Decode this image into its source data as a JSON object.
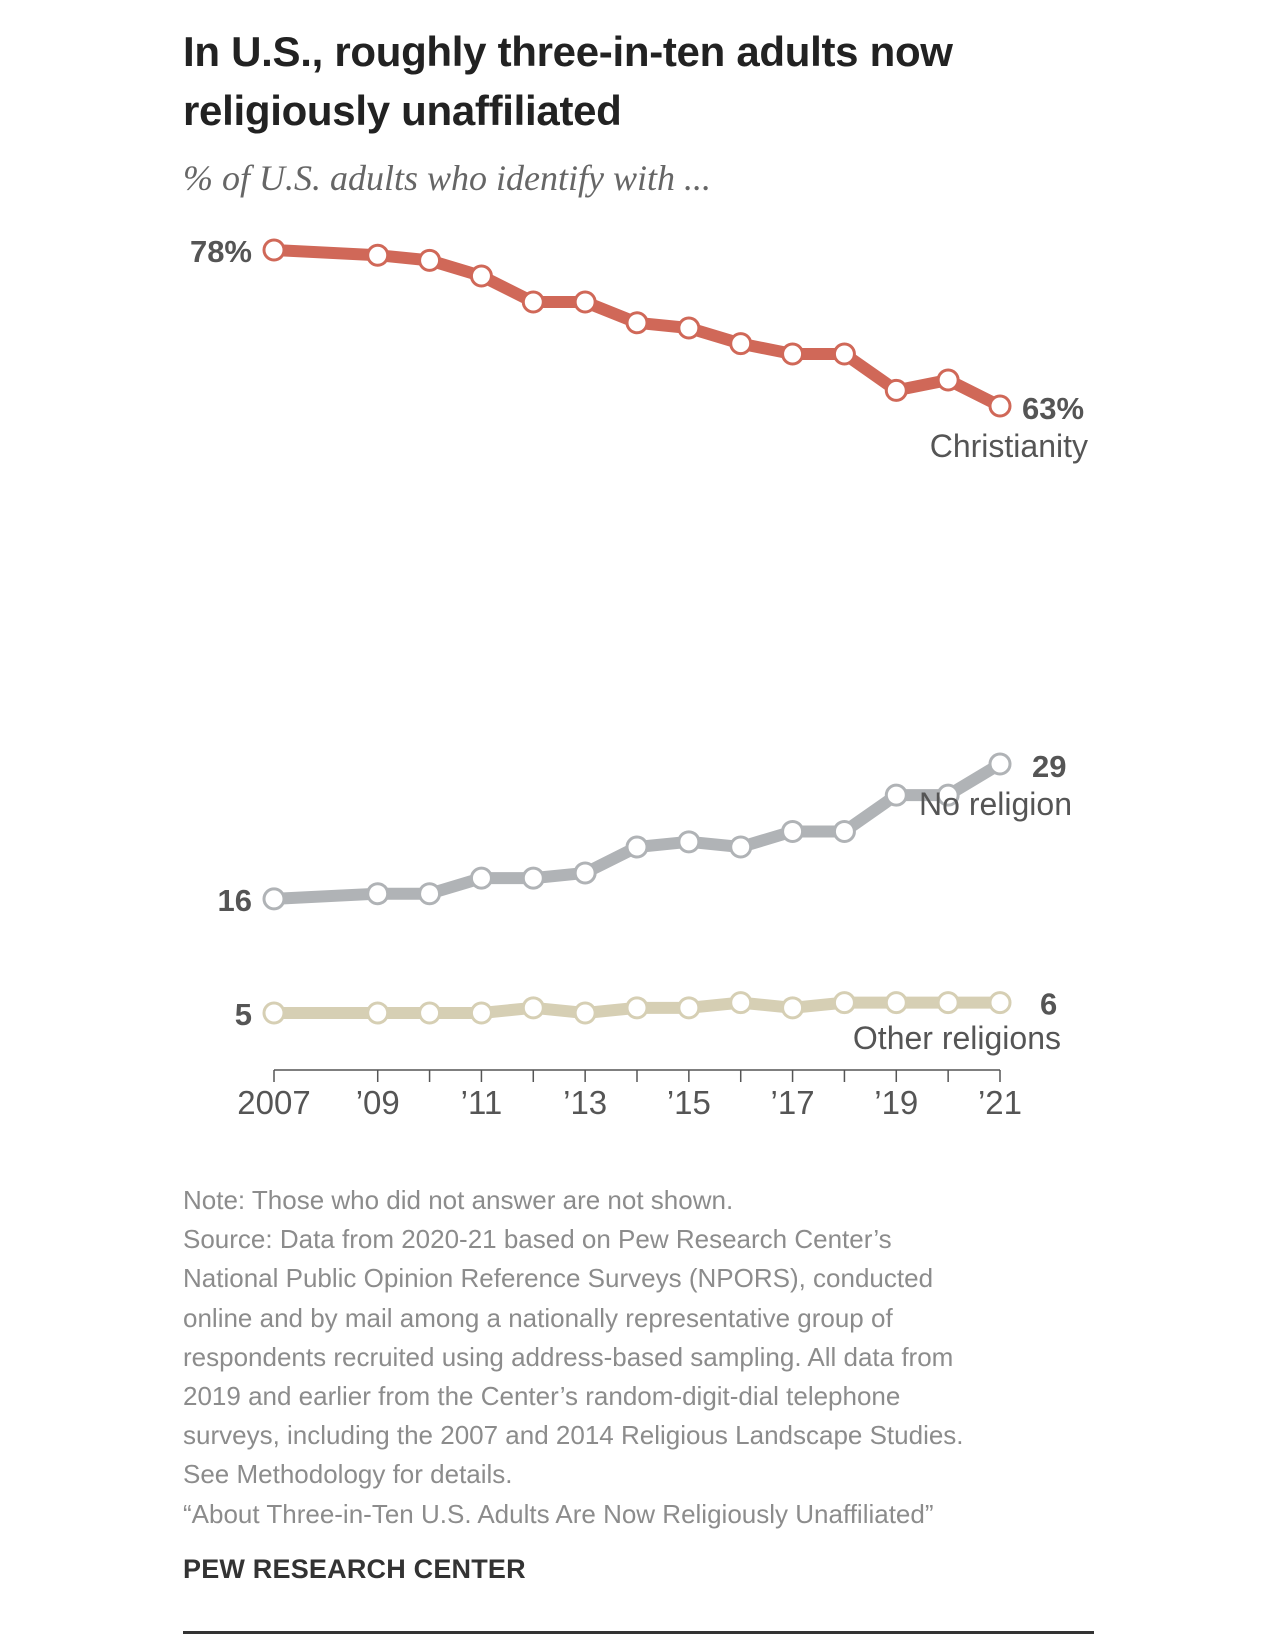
{
  "title": "In U.S., roughly three-in-ten adults now religiously unaffiliated",
  "subtitle": "% of U.S. adults who identify with ...",
  "chart_data": {
    "type": "line",
    "x": [
      2007,
      2009,
      2010,
      2011,
      2012,
      2013,
      2014,
      2015,
      2016,
      2017,
      2018,
      2019,
      2020,
      2021
    ],
    "x_tick_values": [
      2007,
      2009,
      2011,
      2013,
      2015,
      2017,
      2019,
      2021
    ],
    "x_tick_labels": [
      "2007",
      "’09",
      "’11",
      "’13",
      "’15",
      "’17",
      "’19",
      "’21"
    ],
    "xlim": [
      2007,
      2021
    ],
    "ylim": [
      0,
      80
    ],
    "grid": false,
    "legend": "direct labels at line ends",
    "series": [
      {
        "name": "Christianity",
        "color": "#d06858",
        "values": [
          78,
          77.5,
          77,
          75.5,
          73,
          73,
          71,
          70.5,
          69,
          68,
          68,
          64.5,
          65.5,
          63
        ],
        "start_label": "78%",
        "end_label": "63%"
      },
      {
        "name": "No religion",
        "color": "#b0b3b6",
        "values": [
          16,
          16.5,
          16.5,
          18,
          18,
          18.5,
          21,
          21.5,
          21,
          22.5,
          22.5,
          26,
          26,
          29
        ],
        "start_label": "16",
        "end_label": "29"
      },
      {
        "name": "Other religions",
        "color": "#d6cfb4",
        "values": [
          5,
          5,
          5,
          5,
          5.5,
          5,
          5.5,
          5.5,
          6,
          5.5,
          6,
          6,
          6,
          6
        ],
        "start_label": "5",
        "end_label": "6"
      }
    ]
  },
  "notes": [
    "Note: Those who did not answer are not shown.",
    "Source: Data from 2020-21 based on Pew Research Center’s",
    "National Public Opinion Reference Surveys (NPORS), conducted",
    "online and by mail among a nationally representative group of",
    "respondents recruited using address-based sampling. All data from",
    "2019 and earlier from the Center’s random-digit-dial telephone",
    "surveys, including the 2007 and 2014 Religious Landscape Studies.",
    "See Methodology for details.",
    "“About Three-in-Ten U.S. Adults Are Now Religiously Unaffiliated”"
  ],
  "source_brand": "PEW RESEARCH CENTER"
}
